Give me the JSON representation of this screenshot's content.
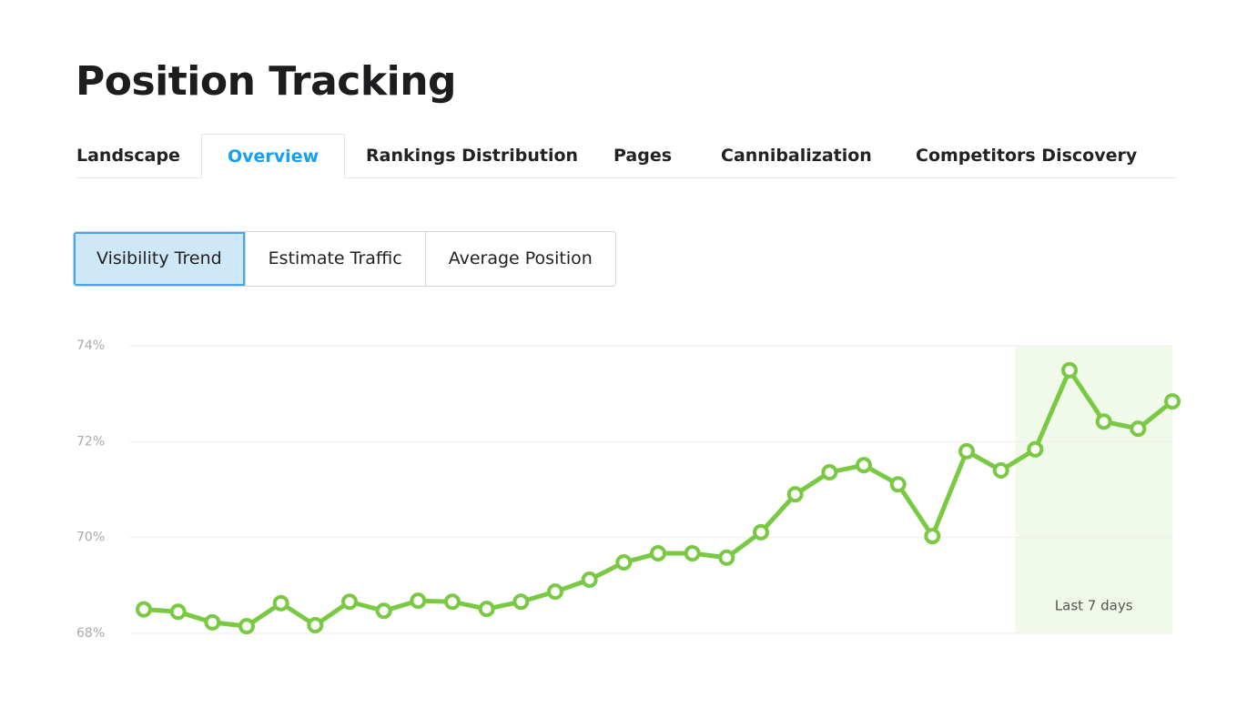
{
  "header": {
    "title": "Position Tracking"
  },
  "tabs": [
    "Landscape",
    "Overview",
    "Rankings Distribution",
    "Pages",
    "Cannibalization",
    "Competitors Discovery"
  ],
  "active_tab": 1,
  "buttons": [
    "Visibility Trend",
    "Estimate Traffic",
    "Average Position"
  ],
  "active_button": 0,
  "chart_data": {
    "type": "line",
    "categories": [
      null,
      null,
      null,
      null,
      null,
      null,
      null,
      null,
      null,
      null,
      null,
      null,
      null,
      null,
      null,
      null,
      null,
      null,
      null,
      null,
      null,
      null,
      null,
      null,
      null,
      null,
      null,
      null,
      null,
      null,
      null
    ],
    "values": [
      68.5,
      68.45,
      68.23,
      68.15,
      68.63,
      68.17,
      68.66,
      68.47,
      68.68,
      68.66,
      68.51,
      68.66,
      68.87,
      69.12,
      69.48,
      69.67,
      69.67,
      69.58,
      70.11,
      70.9,
      71.36,
      71.51,
      71.11,
      70.03,
      71.8,
      71.4,
      71.84,
      73.49,
      72.42,
      72.27,
      72.84
    ],
    "color": "#7ac943",
    "ylim": [
      68,
      74
    ],
    "yticks": [
      {
        "value": 68,
        "label": "68%"
      },
      {
        "value": 70,
        "label": "70%"
      },
      {
        "value": 72,
        "label": "72%"
      },
      {
        "value": 74,
        "label": "74%"
      }
    ],
    "grid": true,
    "highlight": {
      "label": "Last 7 days",
      "from_category": 26,
      "color": "#f1f9ea"
    }
  }
}
